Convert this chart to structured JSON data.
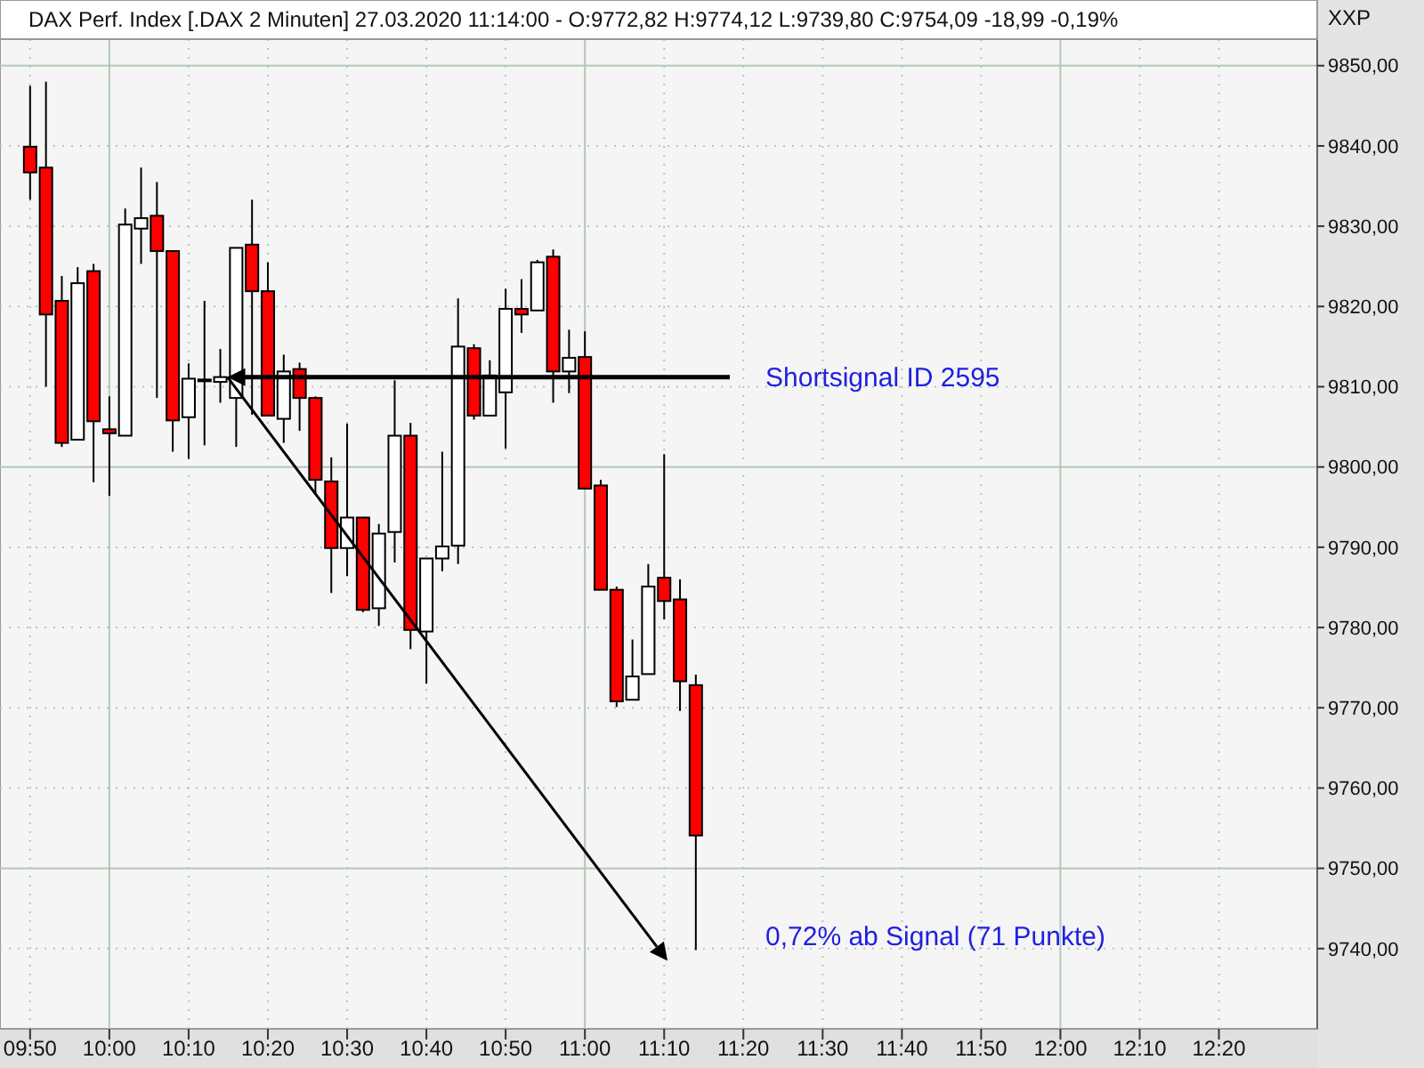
{
  "chart_data": {
    "type": "candlestick",
    "title": "DAX Perf. Index [.DAX  2 Minuten] 27.03.2020 11:14:00 - O:9772,82 H:9774,12 L:9739,80 C:9754,09 -18,99 -0,19%",
    "x": [
      9.8333,
      9.8667,
      9.9,
      9.9333,
      9.9667,
      10,
      10.0333,
      10.0667,
      10.1,
      10.1333,
      10.1667,
      10.2,
      10.2333,
      10.2667,
      10.3,
      10.3333,
      10.3667,
      10.4,
      10.4333,
      10.4667,
      10.5,
      10.5333,
      10.5667,
      10.6,
      10.6333,
      10.6667,
      10.7,
      10.7333,
      10.7667,
      10.8,
      10.8333,
      10.8667,
      10.9,
      10.9333,
      10.9667,
      11,
      11.0333,
      11.0667,
      11.1,
      11.1333,
      11.1667,
      11.2,
      11.2333
    ],
    "ohlc": [
      [
        9839.9,
        9847.5,
        9833.3,
        9836.7
      ],
      [
        9837.3,
        9848,
        9810,
        9819
      ],
      [
        9820.7,
        9823.8,
        9802.5,
        9803
      ],
      [
        9803.4,
        9824.9,
        9803.4,
        9822.9
      ],
      [
        9824.4,
        9825.3,
        9798.1,
        9805.7
      ],
      [
        9804.7,
        9808.8,
        9796.4,
        9804.2
      ],
      [
        9803.9,
        9832.2,
        9803.9,
        9830.2
      ],
      [
        9829.7,
        9837.3,
        9825.3,
        9831
      ],
      [
        9831.3,
        9835.5,
        9808.6,
        9826.9
      ],
      [
        9826.9,
        9826.9,
        9801.9,
        9805.8
      ],
      [
        9806.2,
        9812.9,
        9801,
        9811
      ],
      [
        9810.7,
        9820.7,
        9802.7,
        9810.9
      ],
      [
        9810.6,
        9814.7,
        9808,
        9811.2
      ],
      [
        9808.6,
        9827.3,
        9802.5,
        9827.3
      ],
      [
        9827.7,
        9833.3,
        9806.5,
        9821.9
      ],
      [
        9821.9,
        9825.5,
        9806.4,
        9806.4
      ],
      [
        9806,
        9814,
        9803,
        9811.9
      ],
      [
        9812.2,
        9813,
        9804.5,
        9808.6
      ],
      [
        9808.6,
        9808.8,
        9796.7,
        9798.4
      ],
      [
        9798.2,
        9801.2,
        9784.3,
        9789.9
      ],
      [
        9789.9,
        9805.4,
        9786.4,
        9793.7
      ],
      [
        9793.7,
        9793.7,
        9781.9,
        9782.2
      ],
      [
        9782.4,
        9792.9,
        9780.2,
        9791.7
      ],
      [
        9791.9,
        9810.8,
        9788.1,
        9803.9
      ],
      [
        9803.9,
        9805.5,
        9777.3,
        9779.7
      ],
      [
        9779.5,
        9788.6,
        9773,
        9788.6
      ],
      [
        9788.6,
        9801.9,
        9787,
        9790.1
      ],
      [
        9790.2,
        9821,
        9787.9,
        9815
      ],
      [
        9814.8,
        9815.3,
        9805.9,
        9806.4
      ],
      [
        9806.4,
        9813.3,
        9806.4,
        9811.4
      ],
      [
        9809.3,
        9822.2,
        9802.3,
        9819.7
      ],
      [
        9819.7,
        9823.4,
        9816.7,
        9819
      ],
      [
        9819.5,
        9825.8,
        9819.5,
        9825.5
      ],
      [
        9826.2,
        9827.1,
        9808,
        9811.9
      ],
      [
        9811.9,
        9817.1,
        9809.2,
        9813.6
      ],
      [
        9813.7,
        9816.9,
        9797.3,
        9797.3
      ],
      [
        9797.7,
        9798.4,
        9784.7,
        9784.7
      ],
      [
        9784.7,
        9785.1,
        9770.1,
        9770.8
      ],
      [
        9771,
        9778.5,
        9771,
        9773.9
      ],
      [
        9774.2,
        9787.9,
        9774.2,
        9785.1
      ],
      [
        9786.2,
        9801.6,
        9781,
        9783.3
      ],
      [
        9783.5,
        9786,
        9769.6,
        9773.3
      ],
      [
        9772.82,
        9774.12,
        9739.8,
        9754.09
      ]
    ],
    "xlim": [
      9.77,
      12.54
    ],
    "xticks": [
      {
        "value": 9.8333,
        "label": "09:50"
      },
      {
        "value": 10,
        "label": "10:00"
      },
      {
        "value": 10.1667,
        "label": "10:10"
      },
      {
        "value": 10.3333,
        "label": "10:20"
      },
      {
        "value": 10.5,
        "label": "10:30"
      },
      {
        "value": 10.6667,
        "label": "10:40"
      },
      {
        "value": 10.8333,
        "label": "10:50"
      },
      {
        "value": 11,
        "label": "11:00"
      },
      {
        "value": 11.1667,
        "label": "11:10"
      },
      {
        "value": 11.3333,
        "label": "11:20"
      },
      {
        "value": 11.5,
        "label": "11:30"
      },
      {
        "value": 11.6667,
        "label": "11:40"
      },
      {
        "value": 11.8333,
        "label": "11:50"
      },
      {
        "value": 12,
        "label": "12:00"
      },
      {
        "value": 12.1667,
        "label": "12:10"
      },
      {
        "value": 12.3333,
        "label": "12:20"
      }
    ],
    "ylim": [
      9730,
      9853.3
    ],
    "yticks": [
      {
        "value": 9740,
        "label": "9740,00"
      },
      {
        "value": 9750,
        "label": "9750,00"
      },
      {
        "value": 9760,
        "label": "9760,00"
      },
      {
        "value": 9770,
        "label": "9770,00"
      },
      {
        "value": 9780,
        "label": "9780,00"
      },
      {
        "value": 9790,
        "label": "9790,00"
      },
      {
        "value": 9800,
        "label": "9800,00"
      },
      {
        "value": 9810,
        "label": "9810,00"
      },
      {
        "value": 9820,
        "label": "9820,00"
      },
      {
        "value": 9830,
        "label": "9830,00"
      },
      {
        "value": 9840,
        "label": "9840,00"
      },
      {
        "value": 9850,
        "label": "9850,00"
      }
    ],
    "grid": true,
    "ylabel": "XXP",
    "annotations": [
      "Shortsignal ID 2595",
      "0,72% ab Signal (71 Punkte)"
    ]
  }
}
